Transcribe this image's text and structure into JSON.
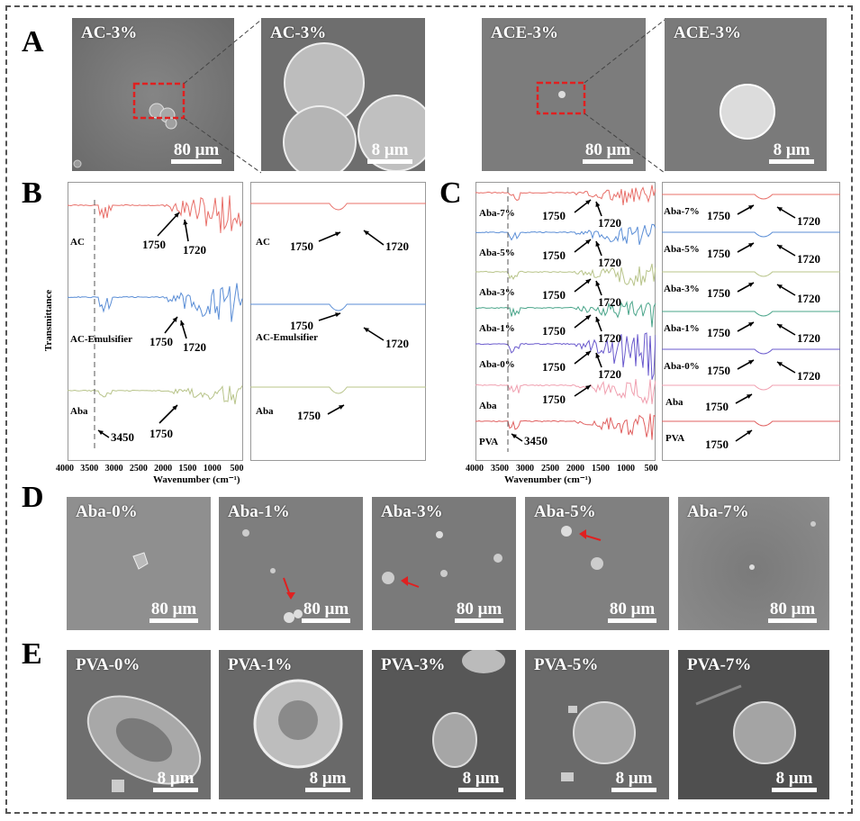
{
  "panel_labels": {
    "A": "A",
    "B": "B",
    "C": "C",
    "D": "D",
    "E": "E"
  },
  "panel_a": {
    "images": [
      {
        "title": "AC-3%",
        "scale": "80 μm"
      },
      {
        "title": "AC-3%",
        "scale": "8 μm"
      },
      {
        "title": "ACE-3%",
        "scale": "80 μm"
      },
      {
        "title": "ACE-3%",
        "scale": "8 μm"
      }
    ]
  },
  "panel_b": {
    "ylabel": "Transmittance",
    "xlabel": "Wavenumber (cm⁻¹)",
    "xticks": [
      "4000",
      "3500",
      "3000",
      "2500",
      "2000",
      "1500",
      "1000",
      "500"
    ],
    "left": {
      "traces": [
        {
          "label": "AC",
          "color": "#e8706a"
        },
        {
          "label": "AC-Emulsifier",
          "color": "#5b8ed6"
        },
        {
          "label": "Aba",
          "color": "#b8c48a"
        }
      ],
      "peak_labels": [
        "1750",
        "1720",
        "1750",
        "1720",
        "1750",
        "3450"
      ]
    },
    "right": {
      "traces": [
        {
          "label": "AC",
          "color": "#e8706a"
        },
        {
          "label": "AC-Emulsifier",
          "color": "#5b8ed6"
        },
        {
          "label": "Aba",
          "color": "#b8c48a"
        }
      ],
      "peak_labels": [
        "1750",
        "1720",
        "1750",
        "1720",
        "1750"
      ]
    }
  },
  "panel_c": {
    "xlabel": "Wavenumber (cm⁻¹)",
    "xticks": [
      "4000",
      "3500",
      "3000",
      "2500",
      "2000",
      "1500",
      "1000",
      "500"
    ],
    "left": {
      "traces": [
        {
          "label": "Aba-7%",
          "color": "#e8706a"
        },
        {
          "label": "Aba-5%",
          "color": "#5b8ed6"
        },
        {
          "label": "Aba-3%",
          "color": "#b8c48a"
        },
        {
          "label": "Aba-1%",
          "color": "#4aa58a"
        },
        {
          "label": "Aba-0%",
          "color": "#6a5acd"
        },
        {
          "label": "Aba",
          "color": "#f0a0b0"
        },
        {
          "label": "PVA",
          "color": "#e06060"
        }
      ],
      "peak_labels": [
        "1750",
        "1720",
        "1750",
        "1720",
        "1750",
        "1720",
        "1750",
        "1720",
        "1750",
        "1720",
        "1750",
        "3450"
      ]
    },
    "right": {
      "traces": [
        {
          "label": "Aba-7%",
          "color": "#e8706a"
        },
        {
          "label": "Aba-5%",
          "color": "#5b8ed6"
        },
        {
          "label": "Aba-3%",
          "color": "#b8c48a"
        },
        {
          "label": "Aba-1%",
          "color": "#4aa58a"
        },
        {
          "label": "Aba-0%",
          "color": "#6a5acd"
        },
        {
          "label": "Aba",
          "color": "#f0a0b0"
        },
        {
          "label": "PVA",
          "color": "#e06060"
        }
      ],
      "peak_labels": [
        "1750",
        "1720",
        "1750",
        "1720",
        "1750",
        "1720",
        "1750",
        "1720",
        "1750",
        "1720",
        "1750",
        "1750"
      ]
    }
  },
  "panel_d": {
    "images": [
      {
        "title": "Aba-0%",
        "scale": "80 μm"
      },
      {
        "title": "Aba-1%",
        "scale": "80 μm"
      },
      {
        "title": "Aba-3%",
        "scale": "80 μm"
      },
      {
        "title": "Aba-5%",
        "scale": "80 μm"
      },
      {
        "title": "Aba-7%",
        "scale": "80 μm"
      }
    ]
  },
  "panel_e": {
    "images": [
      {
        "title": "PVA-0%",
        "scale": "8 μm"
      },
      {
        "title": "PVA-1%",
        "scale": "8 μm"
      },
      {
        "title": "PVA-3%",
        "scale": "8 μm"
      },
      {
        "title": "PVA-5%",
        "scale": "8 μm"
      },
      {
        "title": "PVA-7%",
        "scale": "8 μm"
      }
    ]
  }
}
